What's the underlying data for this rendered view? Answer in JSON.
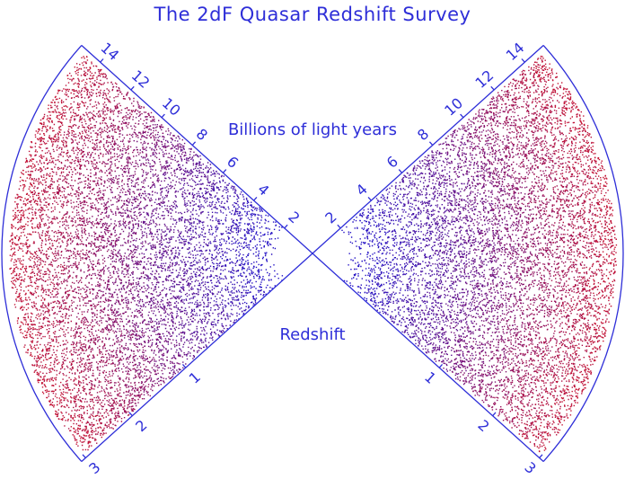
{
  "title": "The 2dF Quasar Redshift Survey",
  "lookback_caption": "Billions of light years",
  "redshift_caption": "Redshift",
  "colors": {
    "line": "#2e2ed8",
    "near": "#1e10c8",
    "far": "#c8102e"
  },
  "lookback_ticks": [
    "2",
    "4",
    "6",
    "8",
    "10",
    "12",
    "14"
  ],
  "redshift_ticks": [
    "1",
    "2",
    "3"
  ]
}
